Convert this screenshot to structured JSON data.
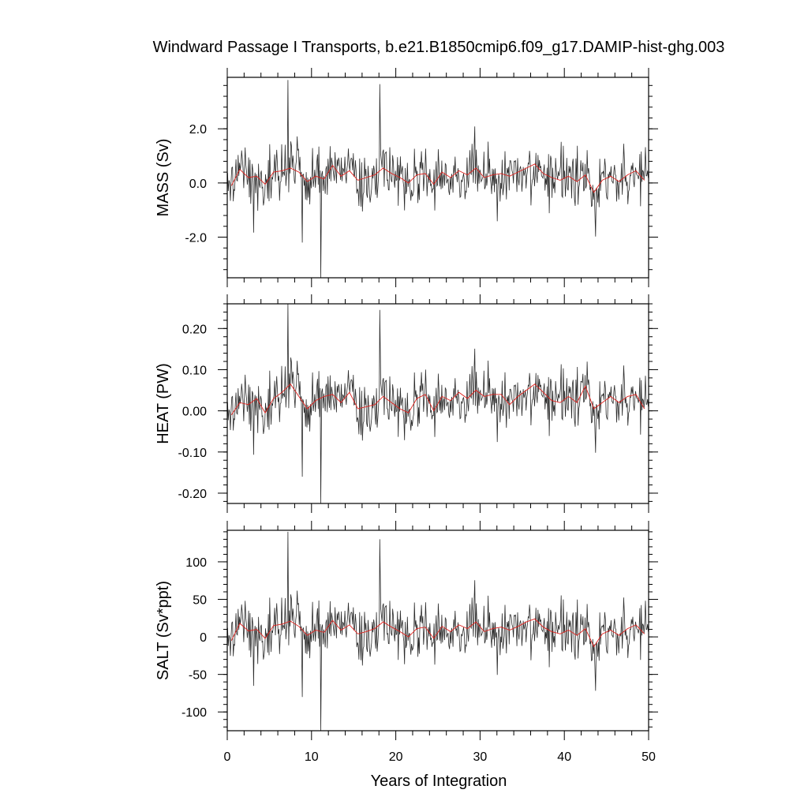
{
  "chart_data": {
    "type": "line",
    "title": "Windward Passage I Transports, b.e21.B1850cmip6.f09_g17.DAMIP-hist-ghg.003",
    "xlabel": "Years of Integration",
    "xlim": [
      0,
      50
    ],
    "xticks": [
      0,
      10,
      20,
      30,
      40,
      50
    ],
    "grid": false,
    "legend": "none",
    "series_colors": {
      "monthly": "#2b2b2b",
      "annual_mean": "#e0201c"
    },
    "panels": [
      {
        "name": "mass",
        "ylabel": "MASS (Sv)",
        "ylim": [
          -3.5,
          3.9
        ],
        "yticks": [
          -2.0,
          0.0,
          2.0
        ],
        "ytick_labels": [
          "-2.0",
          "0.0",
          "2.0"
        ],
        "annual_mean": [
          -0.1,
          0.5,
          0.2,
          0.25,
          -0.05,
          0.4,
          0.45,
          0.55,
          0.4,
          0.05,
          0.25,
          0.15,
          0.65,
          0.25,
          0.45,
          0.1,
          0.2,
          0.3,
          0.55,
          0.35,
          0.2,
          0.0,
          0.3,
          0.35,
          -0.05,
          0.4,
          0.2,
          0.45,
          0.3,
          0.55,
          0.2,
          0.3,
          0.35,
          0.25,
          0.4,
          0.55,
          0.7,
          0.35,
          0.2,
          0.1,
          0.25,
          0.05,
          0.3,
          -0.35,
          0.1,
          0.25,
          0.05,
          0.3,
          0.45,
          0.1
        ],
        "extremes": [
          {
            "x": 7.2,
            "y": 3.8
          },
          {
            "x": 11.1,
            "y": -3.5
          },
          {
            "x": 18.1,
            "y": 3.65
          },
          {
            "x": 8.9,
            "y": -2.2
          }
        ]
      },
      {
        "name": "heat",
        "ylabel": "HEAT (PW)",
        "ylim": [
          -0.225,
          0.26
        ],
        "yticks": [
          -0.2,
          -0.1,
          0.0,
          0.1,
          0.2
        ],
        "ytick_labels": [
          "-0.20",
          "-0.10",
          "0.00",
          "0.10",
          "0.20"
        ],
        "annual_mean": [
          -0.01,
          0.02,
          0.015,
          0.03,
          -0.005,
          0.03,
          0.045,
          0.065,
          0.035,
          0.005,
          0.025,
          0.035,
          0.04,
          0.02,
          0.045,
          0.005,
          0.01,
          0.015,
          0.035,
          0.02,
          0.005,
          -0.005,
          0.03,
          0.04,
          0.0,
          0.035,
          0.025,
          0.045,
          0.03,
          0.05,
          0.035,
          0.04,
          0.04,
          0.015,
          0.035,
          0.05,
          0.065,
          0.045,
          0.025,
          0.02,
          0.035,
          0.02,
          0.06,
          0.005,
          0.02,
          0.035,
          0.02,
          0.035,
          0.04,
          0.005
        ],
        "extremes": [
          {
            "x": 7.2,
            "y": 0.26
          },
          {
            "x": 11.1,
            "y": -0.225
          },
          {
            "x": 18.1,
            "y": 0.245
          },
          {
            "x": 8.9,
            "y": -0.16
          }
        ]
      },
      {
        "name": "salt",
        "ylabel": "SALT (Sv*ppt)",
        "ylim": [
          -125,
          142
        ],
        "yticks": [
          -100,
          -50,
          0,
          50,
          100
        ],
        "ytick_labels": [
          "-100",
          "-50",
          "0",
          "50",
          "100"
        ],
        "annual_mean": [
          -5,
          18,
          8,
          10,
          -2,
          15,
          17,
          21,
          14,
          2,
          9,
          6,
          22,
          9,
          16,
          4,
          7,
          11,
          20,
          13,
          7,
          0,
          11,
          13,
          -2,
          14,
          7,
          16,
          11,
          20,
          7,
          11,
          13,
          9,
          14,
          20,
          24,
          13,
          7,
          4,
          9,
          2,
          11,
          -13,
          4,
          9,
          2,
          11,
          16,
          4
        ],
        "extremes": [
          {
            "x": 7.2,
            "y": 140
          },
          {
            "x": 11.1,
            "y": -125
          },
          {
            "x": 18.1,
            "y": 130
          },
          {
            "x": 8.9,
            "y": -80
          }
        ]
      }
    ]
  }
}
